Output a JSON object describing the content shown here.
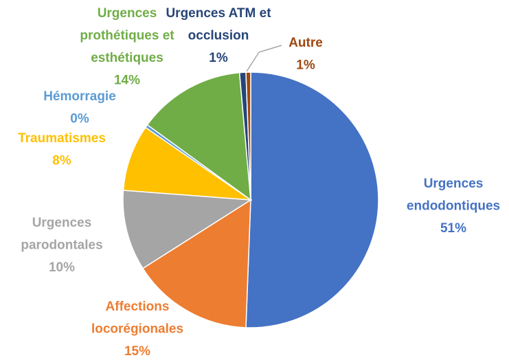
{
  "chart_data": {
    "type": "pie",
    "categories": [
      "Urgences endodontiques",
      "Affections locorégionales",
      "Urgences parodontales",
      "Traumatismes",
      "Hémorragie",
      "Urgences prothétiques et esthétiques",
      "Urgences ATM et occlusion",
      "Autre"
    ],
    "values": [
      50.6,
      15.4,
      10.2,
      8.4,
      0.4,
      13.6,
      0.8,
      0.6
    ],
    "value_labels": [
      "51%",
      "15%",
      "10%",
      "8%",
      "0%",
      "14%",
      "1%",
      "1%"
    ],
    "colors": [
      "#4472c4",
      "#ed7d31",
      "#a5a5a5",
      "#ffc000",
      "#5b9bd5",
      "#70ad47",
      "#264478",
      "#9e480e"
    ]
  }
}
